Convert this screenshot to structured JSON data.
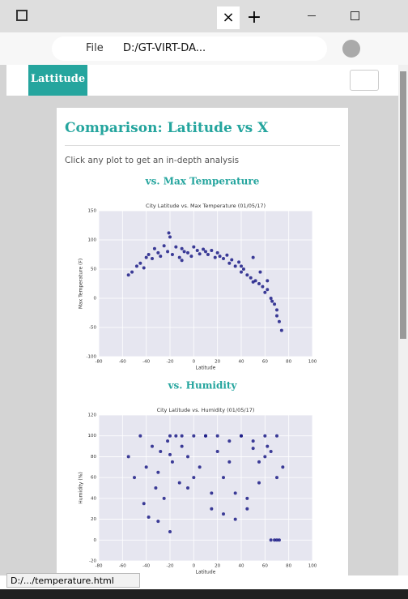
{
  "browser": {
    "tab_close": "×",
    "new_tab": "+",
    "address_scheme": "File",
    "address": "D:/GT-VIRT-DA...",
    "status": "D:/.../temperature.html"
  },
  "page": {
    "brand": "Lattitude",
    "heading": "Comparison: Latitude vs X",
    "instructions": "Click any plot to get an in-depth analysis"
  },
  "charts": [
    {
      "type": "scatter",
      "section": "vs. Max Temperature",
      "title": "City Latitude vs. Max Temperature (01/05/17)",
      "x_label": "Latitude",
      "y_label": "Max Temperature (F)",
      "color": "#1b1b86",
      "grid": true,
      "xlim": [
        -80,
        100
      ],
      "ylim": [
        -100,
        150
      ],
      "xticks": [
        -80,
        -60,
        -40,
        -20,
        0,
        20,
        40,
        60,
        80,
        100
      ],
      "yticks": [
        -100,
        -50,
        0,
        50,
        100,
        150
      ],
      "x": [
        -55,
        -52,
        -48,
        -45,
        -42,
        -40,
        -38,
        -35,
        -33,
        -30,
        -28,
        -25,
        -22,
        -20,
        -18,
        -15,
        -12,
        -10,
        -8,
        -5,
        -2,
        0,
        3,
        5,
        8,
        10,
        12,
        15,
        18,
        20,
        22,
        25,
        28,
        30,
        32,
        35,
        38,
        40,
        42,
        45,
        48,
        50,
        52,
        55,
        58,
        60,
        62,
        65,
        68,
        70,
        72,
        74,
        -21,
        -10,
        56,
        62,
        66,
        70,
        40,
        50
      ],
      "y": [
        40,
        45,
        55,
        60,
        52,
        70,
        75,
        68,
        85,
        78,
        72,
        90,
        80,
        105,
        75,
        88,
        70,
        85,
        80,
        78,
        72,
        88,
        82,
        76,
        84,
        80,
        75,
        82,
        70,
        78,
        72,
        68,
        74,
        60,
        66,
        55,
        62,
        45,
        50,
        40,
        35,
        28,
        30,
        25,
        20,
        10,
        15,
        0,
        -10,
        -20,
        -40,
        -55,
        112,
        65,
        45,
        30,
        -5,
        -30,
        55,
        70
      ]
    },
    {
      "type": "scatter",
      "section": "vs. Humidity",
      "title": "City Latitude vs. Humidity (01/05/17)",
      "x_label": "Latitude",
      "y_label": "Humidity (%)",
      "color": "#1b1b86",
      "grid": true,
      "xlim": [
        -80,
        100
      ],
      "ylim": [
        -20,
        120
      ],
      "xticks": [
        -80,
        -60,
        -40,
        -20,
        0,
        20,
        40,
        60,
        80,
        100
      ],
      "yticks": [
        -20,
        0,
        20,
        40,
        60,
        80,
        100,
        120
      ],
      "x": [
        -55,
        -50,
        -45,
        -42,
        -40,
        -38,
        -35,
        -32,
        -30,
        -28,
        -25,
        -22,
        -20,
        -18,
        -15,
        -12,
        -10,
        -5,
        0,
        5,
        10,
        15,
        20,
        25,
        30,
        35,
        40,
        45,
        50,
        55,
        60,
        65,
        70,
        75,
        -20,
        -10,
        0,
        10,
        20,
        30,
        40,
        50,
        60,
        70,
        -30,
        -5,
        15,
        35,
        55,
        65,
        68,
        70,
        72,
        -20,
        25,
        45,
        62
      ],
      "y": [
        80,
        60,
        100,
        35,
        70,
        22,
        90,
        50,
        65,
        85,
        40,
        95,
        8,
        75,
        100,
        55,
        100,
        80,
        100,
        70,
        100,
        45,
        100,
        60,
        95,
        20,
        100,
        30,
        88,
        75,
        100,
        85,
        60,
        70,
        100,
        90,
        60,
        100,
        85,
        75,
        100,
        95,
        80,
        100,
        18,
        50,
        30,
        45,
        55,
        0,
        0,
        0,
        0,
        82,
        25,
        40,
        90
      ]
    }
  ]
}
